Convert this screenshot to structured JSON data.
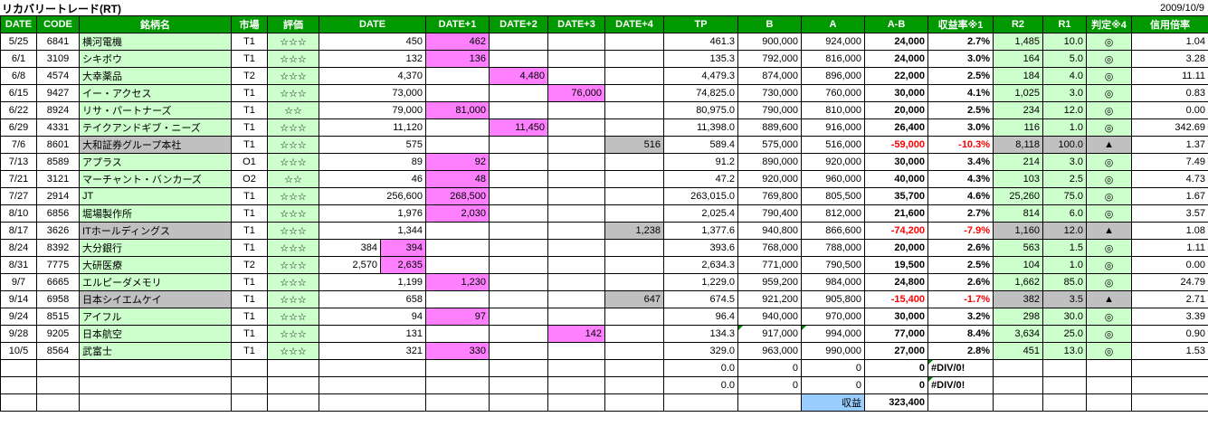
{
  "page": {
    "title": "リカバリートレード(RT)",
    "date": "2009/10/9"
  },
  "colors": {
    "header_bg": "#009900",
    "row_green": "#CCFFCC",
    "row_gray": "#C0C0C0",
    "hit_magenta": "#FF80FF",
    "negative_red": "#FF0000",
    "total_blue": "#99CCFF",
    "grid": "#000000"
  },
  "table": {
    "headers": [
      {
        "label": "DATE",
        "span": 1
      },
      {
        "label": "CODE",
        "span": 1
      },
      {
        "label": "銘柄名",
        "span": 1
      },
      {
        "label": "市場",
        "span": 1
      },
      {
        "label": "評価",
        "span": 1
      },
      {
        "label": "DATE",
        "span": 2
      },
      {
        "label": "DATE+1",
        "span": 1
      },
      {
        "label": "DATE+2",
        "span": 1
      },
      {
        "label": "DATE+3",
        "span": 1
      },
      {
        "label": "DATE+4",
        "span": 1
      },
      {
        "label": "TP",
        "span": 1
      },
      {
        "label": "B",
        "span": 1
      },
      {
        "label": "A",
        "span": 1
      },
      {
        "label": "A-B",
        "span": 1
      },
      {
        "label": "収益率※1",
        "span": 1
      },
      {
        "label": "R2",
        "span": 1
      },
      {
        "label": "R1",
        "span": 1
      },
      {
        "label": "判定※4",
        "span": 1
      },
      {
        "label": "信用倍率",
        "span": 1
      }
    ],
    "rows": [
      {
        "date": "5/25",
        "code": "6841",
        "name": "横河電機",
        "market": "T1",
        "rating": "☆☆☆",
        "d0": "450",
        "d0x": "",
        "d1": "462",
        "hit": "d1",
        "tp": "461.3",
        "b": "900,000",
        "a": "924,000",
        "ab": "24,000",
        "yield": "2.7%",
        "r2": "1,485",
        "r1": "10.0",
        "judge": "◎",
        "ratio": "1.04",
        "loss": false
      },
      {
        "date": "6/1",
        "code": "3109",
        "name": "シキボウ",
        "market": "T1",
        "rating": "☆☆☆",
        "d0": "132",
        "d0x": "",
        "d1": "136",
        "hit": "d1",
        "tp": "135.3",
        "b": "792,000",
        "a": "816,000",
        "ab": "24,000",
        "yield": "3.0%",
        "r2": "164",
        "r1": "5.0",
        "judge": "◎",
        "ratio": "3.28",
        "loss": false
      },
      {
        "date": "6/8",
        "code": "4574",
        "name": "大幸薬品",
        "market": "T2",
        "rating": "☆☆☆",
        "d0": "4,370",
        "d0x": "",
        "d2": "4,480",
        "hit": "d2",
        "tp": "4,479.3",
        "b": "874,000",
        "a": "896,000",
        "ab": "22,000",
        "yield": "2.5%",
        "r2": "184",
        "r1": "4.0",
        "judge": "◎",
        "ratio": "11.11",
        "loss": false
      },
      {
        "date": "6/15",
        "code": "9427",
        "name": "イー・アクセス",
        "market": "T1",
        "rating": "☆☆☆",
        "d0": "73,000",
        "d0x": "",
        "d3": "76,000",
        "hit": "d3",
        "tp": "74,825.0",
        "b": "730,000",
        "a": "760,000",
        "ab": "30,000",
        "yield": "4.1%",
        "r2": "1,025",
        "r1": "3.0",
        "judge": "◎",
        "ratio": "0.83",
        "loss": false
      },
      {
        "date": "6/22",
        "code": "8924",
        "name": "リサ・パートナーズ",
        "market": "T1",
        "rating": "☆☆",
        "d0": "79,000",
        "d0x": "",
        "d1": "81,000",
        "hit": "d1",
        "tp": "80,975.0",
        "b": "790,000",
        "a": "810,000",
        "ab": "20,000",
        "yield": "2.5%",
        "r2": "234",
        "r1": "12.0",
        "judge": "◎",
        "ratio": "0.00",
        "loss": false
      },
      {
        "date": "6/29",
        "code": "4331",
        "name": "テイクアンドギブ・ニーズ",
        "market": "T1",
        "rating": "☆☆☆",
        "d0": "11,120",
        "d0x": "",
        "d2": "11,450",
        "hit": "d2",
        "tp": "11,398.0",
        "b": "889,600",
        "a": "916,000",
        "ab": "26,400",
        "yield": "3.0%",
        "r2": "116",
        "r1": "1.0",
        "judge": "◎",
        "ratio": "342.69",
        "loss": false
      },
      {
        "date": "7/6",
        "code": "8601",
        "name": "大和証券グループ本社",
        "market": "T1",
        "rating": "☆☆☆",
        "d0": "575",
        "d0x": "",
        "d4": "516",
        "hit": "d4",
        "tp": "589.4",
        "b": "575,000",
        "a": "516,000",
        "ab": "-59,000",
        "yield": "-10.3%",
        "r2": "8,118",
        "r1": "100.0",
        "judge": "▲",
        "ratio": "1.37",
        "loss": true
      },
      {
        "date": "7/13",
        "code": "8589",
        "name": "アプラス",
        "market": "O1",
        "rating": "☆☆☆",
        "d0": "89",
        "d0x": "",
        "d1": "92",
        "hit": "d1",
        "tp": "91.2",
        "b": "890,000",
        "a": "920,000",
        "ab": "30,000",
        "yield": "3.4%",
        "r2": "214",
        "r1": "3.0",
        "judge": "◎",
        "ratio": "7.49",
        "loss": false
      },
      {
        "date": "7/21",
        "code": "3121",
        "name": "マーチャント・バンカーズ",
        "market": "O2",
        "rating": "☆☆",
        "d0": "46",
        "d0x": "",
        "d1": "48",
        "hit": "d1",
        "tp": "47.2",
        "b": "920,000",
        "a": "960,000",
        "ab": "40,000",
        "yield": "4.3%",
        "r2": "103",
        "r1": "2.5",
        "judge": "◎",
        "ratio": "4.73",
        "loss": false
      },
      {
        "date": "7/27",
        "code": "2914",
        "name": "JT",
        "market": "T1",
        "rating": "☆☆☆",
        "d0": "256,600",
        "d0x": "",
        "d1": "268,500",
        "hit": "d1",
        "tp": "263,015.0",
        "b": "769,800",
        "a": "805,500",
        "ab": "35,700",
        "yield": "4.6%",
        "r2": "25,260",
        "r1": "75.0",
        "judge": "◎",
        "ratio": "1.67",
        "loss": false
      },
      {
        "date": "8/10",
        "code": "6856",
        "name": "堀場製作所",
        "market": "T1",
        "rating": "☆☆☆",
        "d0": "1,976",
        "d0x": "",
        "d1": "2,030",
        "hit": "d1",
        "tp": "2,025.4",
        "b": "790,400",
        "a": "812,000",
        "ab": "21,600",
        "yield": "2.7%",
        "r2": "814",
        "r1": "6.0",
        "judge": "◎",
        "ratio": "3.57",
        "loss": false
      },
      {
        "date": "8/17",
        "code": "3626",
        "name": "ITホールディングス",
        "market": "T1",
        "rating": "☆☆☆",
        "d0": "1,344",
        "d0x": "",
        "d4": "1,238",
        "hit": "d4",
        "tp": "1,377.6",
        "b": "940,800",
        "a": "866,600",
        "ab": "-74,200",
        "yield": "-7.9%",
        "r2": "1,160",
        "r1": "12.0",
        "judge": "▲",
        "ratio": "1.08",
        "loss": true
      },
      {
        "date": "8/24",
        "code": "8392",
        "name": "大分銀行",
        "market": "T1",
        "rating": "☆☆☆",
        "d0": "384",
        "d0x": "394",
        "hit": "d0x",
        "tp": "393.6",
        "b": "768,000",
        "a": "788,000",
        "ab": "20,000",
        "yield": "2.6%",
        "r2": "563",
        "r1": "1.5",
        "judge": "◎",
        "ratio": "1.11",
        "loss": false
      },
      {
        "date": "8/31",
        "code": "7775",
        "name": "大研医療",
        "market": "T2",
        "rating": "☆☆☆",
        "d0": "2,570",
        "d0x": "2,635",
        "hit": "d0x",
        "tp": "2,634.3",
        "b": "771,000",
        "a": "790,500",
        "ab": "19,500",
        "yield": "2.5%",
        "r2": "104",
        "r1": "1.0",
        "judge": "◎",
        "ratio": "0.00",
        "loss": false
      },
      {
        "date": "9/7",
        "code": "6665",
        "name": "エルピーダメモリ",
        "market": "T1",
        "rating": "☆☆☆",
        "d0": "1,199",
        "d0x": "",
        "d1": "1,230",
        "hit": "d1",
        "tp": "1,229.0",
        "b": "959,200",
        "a": "984,000",
        "ab": "24,800",
        "yield": "2.6%",
        "r2": "1,662",
        "r1": "85.0",
        "judge": "◎",
        "ratio": "24.79",
        "loss": false
      },
      {
        "date": "9/14",
        "code": "6958",
        "name": "日本シイエムケイ",
        "market": "T1",
        "rating": "☆☆☆",
        "d0": "658",
        "d0x": "",
        "d4": "647",
        "hit": "d4",
        "tp": "674.5",
        "b": "921,200",
        "a": "905,800",
        "ab": "-15,400",
        "yield": "-1.7%",
        "r2": "382",
        "r1": "3.5",
        "judge": "▲",
        "ratio": "2.71",
        "loss": true
      },
      {
        "date": "9/24",
        "code": "8515",
        "name": "アイフル",
        "market": "T1",
        "rating": "☆☆☆",
        "d0": "94",
        "d0x": "",
        "d1": "97",
        "hit": "d1",
        "tp": "96.4",
        "b": "940,000",
        "a": "970,000",
        "ab": "30,000",
        "yield": "3.2%",
        "r2": "298",
        "r1": "30.0",
        "judge": "◎",
        "ratio": "3.39",
        "loss": false
      },
      {
        "date": "9/28",
        "code": "9205",
        "name": "日本航空",
        "market": "T1",
        "rating": "☆☆☆",
        "d0": "131",
        "d0x": "",
        "d3": "142",
        "hit": "d3",
        "tp": "134.3",
        "b": "917,000",
        "a": "994,000",
        "ab": "77,000",
        "yield": "8.4%",
        "r2": "3,634",
        "r1": "25.0",
        "judge": "◎",
        "ratio": "0.90",
        "loss": false,
        "b_corner": true,
        "a_corner": true
      },
      {
        "date": "10/5",
        "code": "8564",
        "name": "武富士",
        "market": "T1",
        "rating": "☆☆☆",
        "d0": "321",
        "d0x": "",
        "d1": "330",
        "hit": "d1",
        "tp": "329.0",
        "b": "963,000",
        "a": "990,000",
        "ab": "27,000",
        "yield": "2.8%",
        "r2": "451",
        "r1": "13.0",
        "judge": "◎",
        "ratio": "1.53",
        "loss": false
      }
    ],
    "footer_rows": [
      {
        "tp": "0.0",
        "b": "0",
        "a": "0",
        "ab": "0",
        "yield": "#DIV/0!"
      },
      {
        "tp": "0.0",
        "b": "0",
        "a": "0",
        "ab": "0",
        "yield": "#DIV/0!"
      }
    ],
    "total": {
      "label": "収益",
      "value": "323,400"
    }
  }
}
